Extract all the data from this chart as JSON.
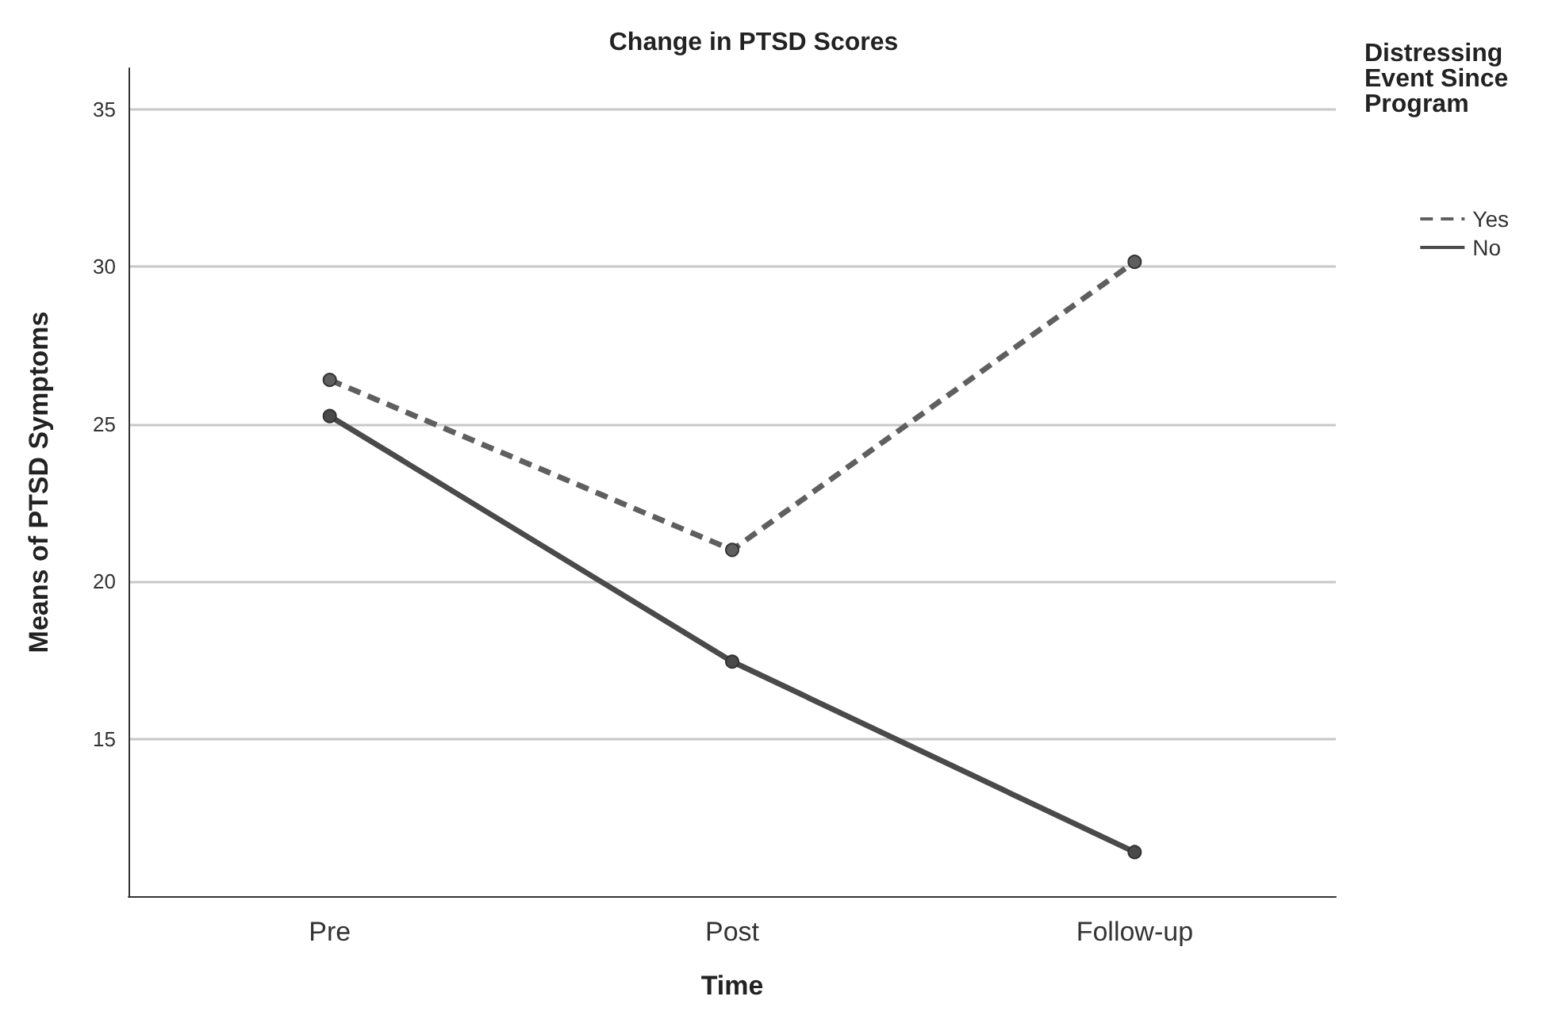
{
  "chart_data": {
    "type": "line",
    "title": "Change in PTSD Scores",
    "xlabel": "Time",
    "ylabel": "Means of PTSD Symptoms",
    "legend_title": "Distressing Event Since Program",
    "categories": [
      "Pre",
      "Post",
      "Follow-up"
    ],
    "series": [
      {
        "name": "Yes",
        "color": "#5f5f5f",
        "line_style": "dashed",
        "values": [
          26.4,
          21.0,
          30.15
        ]
      },
      {
        "name": "No",
        "color": "#4a4a4a",
        "line_style": "solid",
        "values": [
          25.25,
          17.45,
          11.4
        ]
      }
    ],
    "ylim": [
      10,
      36.3
    ],
    "yticks": [
      15,
      20,
      25,
      30,
      35
    ],
    "grid": "y",
    "legend": "top right",
    "marker": "circle"
  }
}
